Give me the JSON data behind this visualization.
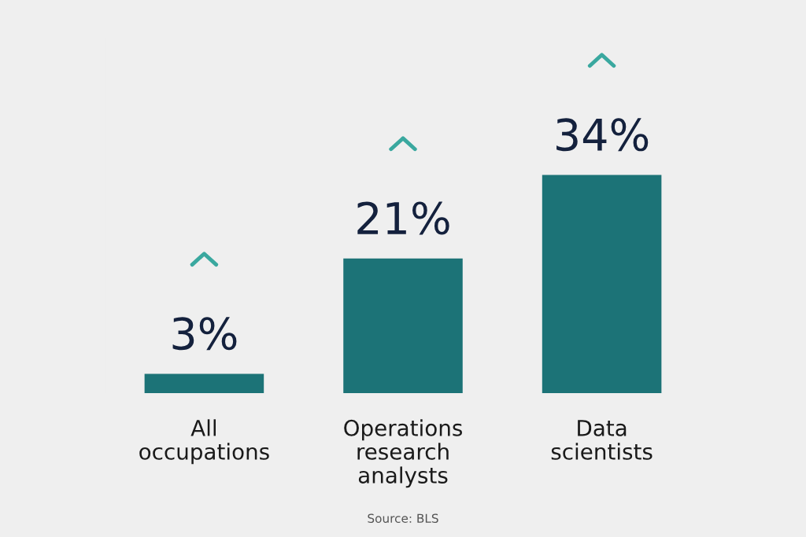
{
  "chart_data": {
    "type": "bar",
    "categories": [
      "All occupations",
      "Operations research analysts",
      "Data scientists"
    ],
    "values": [
      3,
      21,
      34
    ],
    "color": "#1c7377",
    "data_labels": true,
    "value_labels": [
      "3%",
      "21%",
      "34%"
    ],
    "annotations": [
      "Source: BLS"
    ],
    "grid": false,
    "legend": false
  }
}
